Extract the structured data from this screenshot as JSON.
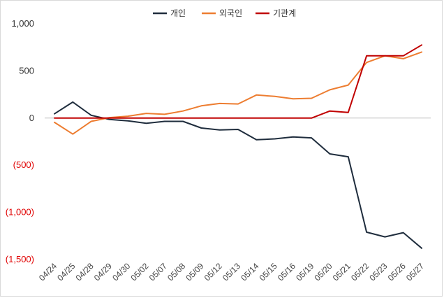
{
  "chart_data": {
    "type": "line",
    "title": "",
    "xlabel": "",
    "ylabel": "",
    "ylim": [
      -1500,
      1000
    ],
    "yticks": [
      1000,
      500,
      0,
      -500,
      -1000,
      -1500
    ],
    "ytick_labels": [
      "1,000",
      "500",
      "0",
      "(500)",
      "(1,000)",
      "(1,500)"
    ],
    "negative_tick_color": "#e00000",
    "grid": "horizontal-zero-line",
    "legend_position": "top-center",
    "x": [
      "04/24",
      "04/25",
      "04/28",
      "04/29",
      "04/30",
      "05/02",
      "05/07",
      "05/08",
      "05/09",
      "05/12",
      "05/13",
      "05/14",
      "05/15",
      "05/16",
      "05/19",
      "05/20",
      "05/21",
      "05/22",
      "05/23",
      "05/26",
      "05/27"
    ],
    "series": [
      {
        "name": "개인",
        "color": "#1f2d3d",
        "values": [
          45,
          170,
          30,
          -15,
          -30,
          -55,
          -35,
          -35,
          -105,
          -125,
          -120,
          -230,
          -220,
          -200,
          -210,
          -380,
          -410,
          -1210,
          -1260,
          -1215,
          -1380
        ]
      },
      {
        "name": "외국인",
        "color": "#ed7d31",
        "values": [
          -45,
          -170,
          -35,
          5,
          20,
          50,
          40,
          75,
          130,
          155,
          150,
          245,
          230,
          205,
          210,
          300,
          350,
          590,
          660,
          630,
          700
        ]
      },
      {
        "name": "기관계",
        "color": "#c00000",
        "values": [
          0,
          0,
          0,
          0,
          0,
          0,
          0,
          0,
          0,
          0,
          0,
          0,
          0,
          0,
          0,
          75,
          60,
          660,
          660,
          660,
          775
        ]
      }
    ]
  }
}
